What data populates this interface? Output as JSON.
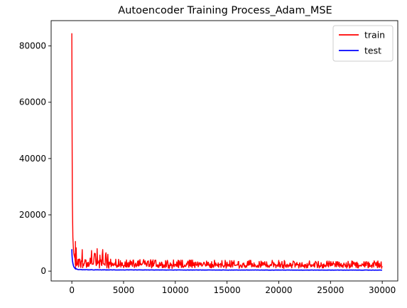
{
  "chart_data": {
    "type": "line",
    "title": "Autoencoder Training Process_Adam_MSE",
    "xlabel": "",
    "ylabel": "",
    "xlim": [
      -2000,
      31500
    ],
    "ylim": [
      -3500,
      89000
    ],
    "x_ticks": [
      0,
      5000,
      10000,
      15000,
      20000,
      25000,
      30000
    ],
    "x_tick_labels": [
      "0",
      "5000",
      "10000",
      "15000",
      "20000",
      "25000",
      "30000"
    ],
    "y_ticks": [
      0,
      20000,
      40000,
      60000,
      80000
    ],
    "y_tick_labels": [
      "0",
      "20000",
      "40000",
      "60000",
      "80000"
    ],
    "grid": false,
    "legend_position": "top-right",
    "series": [
      {
        "name": "train",
        "color": "#ff0000",
        "x": [
          0,
          20,
          50,
          100,
          150,
          200,
          300,
          400,
          500,
          600,
          700,
          800,
          1000,
          1500,
          2000,
          3000,
          5000,
          10000,
          15000,
          20000,
          25000,
          30000
        ],
        "values": [
          84500,
          55000,
          25000,
          12000,
          8000,
          6000,
          4500,
          3800,
          3500,
          3300,
          3200,
          3100,
          3000,
          2900,
          2800,
          2700,
          2600,
          2500,
          2400,
          2350,
          2300,
          2250
        ]
      },
      {
        "name": "test",
        "color": "#0000ff",
        "x": [
          0,
          20,
          50,
          100,
          150,
          200,
          300,
          400,
          500,
          700,
          1000,
          2000,
          5000,
          10000,
          15000,
          20000,
          25000,
          30000
        ],
        "values": [
          7800,
          5500,
          4000,
          2800,
          2000,
          1500,
          1000,
          800,
          650,
          550,
          500,
          450,
          420,
          400,
          390,
          380,
          370,
          360
        ]
      }
    ]
  }
}
